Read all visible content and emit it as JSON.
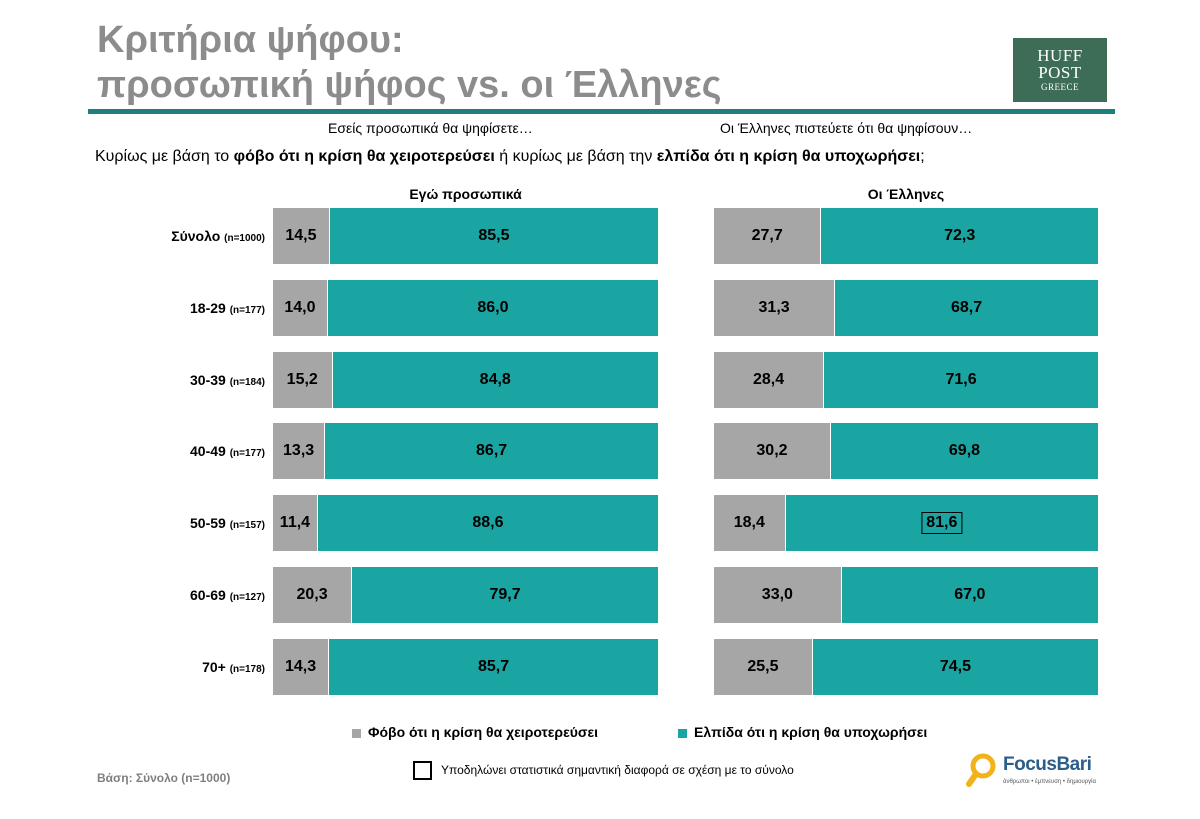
{
  "title": {
    "line1": "Κριτήρια ψήφου:",
    "line2": "προσωπική ψήφος vs. οι Έλληνες"
  },
  "logo": {
    "line1": "HUFF",
    "line2": "POST",
    "line3": "GREECE"
  },
  "subtitles": {
    "left": "Εσείς προσωπικά θα ψηφίσετε…",
    "right": "Οι Έλληνες πιστεύετε ότι θα ψηφίσουν…"
  },
  "question": {
    "p1": "Κυρίως με βάση το ",
    "b1": "φόβο ότι η κρίση θα χειροτερεύσει",
    "p2": " ή κυρίως με βάση  την ",
    "b2": "ελπίδα ότι η κρίση θα υποχωρήσει",
    "p3": ";"
  },
  "chart_data": {
    "type": "bar",
    "stacked": true,
    "orientation": "horizontal",
    "categories": [
      {
        "label": "Σύνολο",
        "n": "(n=1000)"
      },
      {
        "label": "18-29",
        "n": "(n=177)"
      },
      {
        "label": "30-39",
        "n": "(n=184)"
      },
      {
        "label": "40-49",
        "n": "(n=177)"
      },
      {
        "label": "50-59",
        "n": "(n=157)"
      },
      {
        "label": "60-69",
        "n": "(n=127)"
      },
      {
        "label": "70+",
        "n": "(n=178)"
      }
    ],
    "panels": [
      {
        "title": "Εγώ προσωπικά",
        "fear": [
          "14,5",
          "14,0",
          "15,2",
          "13,3",
          "11,4",
          "20,3",
          "14,3"
        ],
        "hope": [
          "85,5",
          "86,0",
          "84,8",
          "86,7",
          "88,6",
          "79,7",
          "85,7"
        ],
        "significant": []
      },
      {
        "title": "Οι Έλληνες",
        "fear": [
          "27,7",
          "31,3",
          "28,4",
          "30,2",
          "18,4",
          "33,0",
          "25,5"
        ],
        "hope": [
          "72,3",
          "68,7",
          "71,6",
          "69,8",
          "81,6",
          "67,0",
          "74,5"
        ],
        "significant": [
          {
            "row": 4,
            "series": "hope"
          }
        ]
      }
    ],
    "legend": {
      "fear": "Φόβο ότι η κρίση θα χειροτερεύσει",
      "hope": "Ελπίδα ότι η κρίση θα υποχωρήσει"
    },
    "colors": {
      "fear": "#a6a6a6",
      "hope": "#1aa5a2"
    },
    "xlim": [
      0,
      100
    ]
  },
  "footnote": {
    "significance": "Υποδηλώνει στατιστικά σημαντική διαφορά σε σχέση με το σύνολο",
    "base": "Βάση: Σύνολο (n=1000)"
  },
  "focus_logo": {
    "name": "FocusBari",
    "tagline": "άνθρωποι • έμπνευση • δημιουργία"
  }
}
